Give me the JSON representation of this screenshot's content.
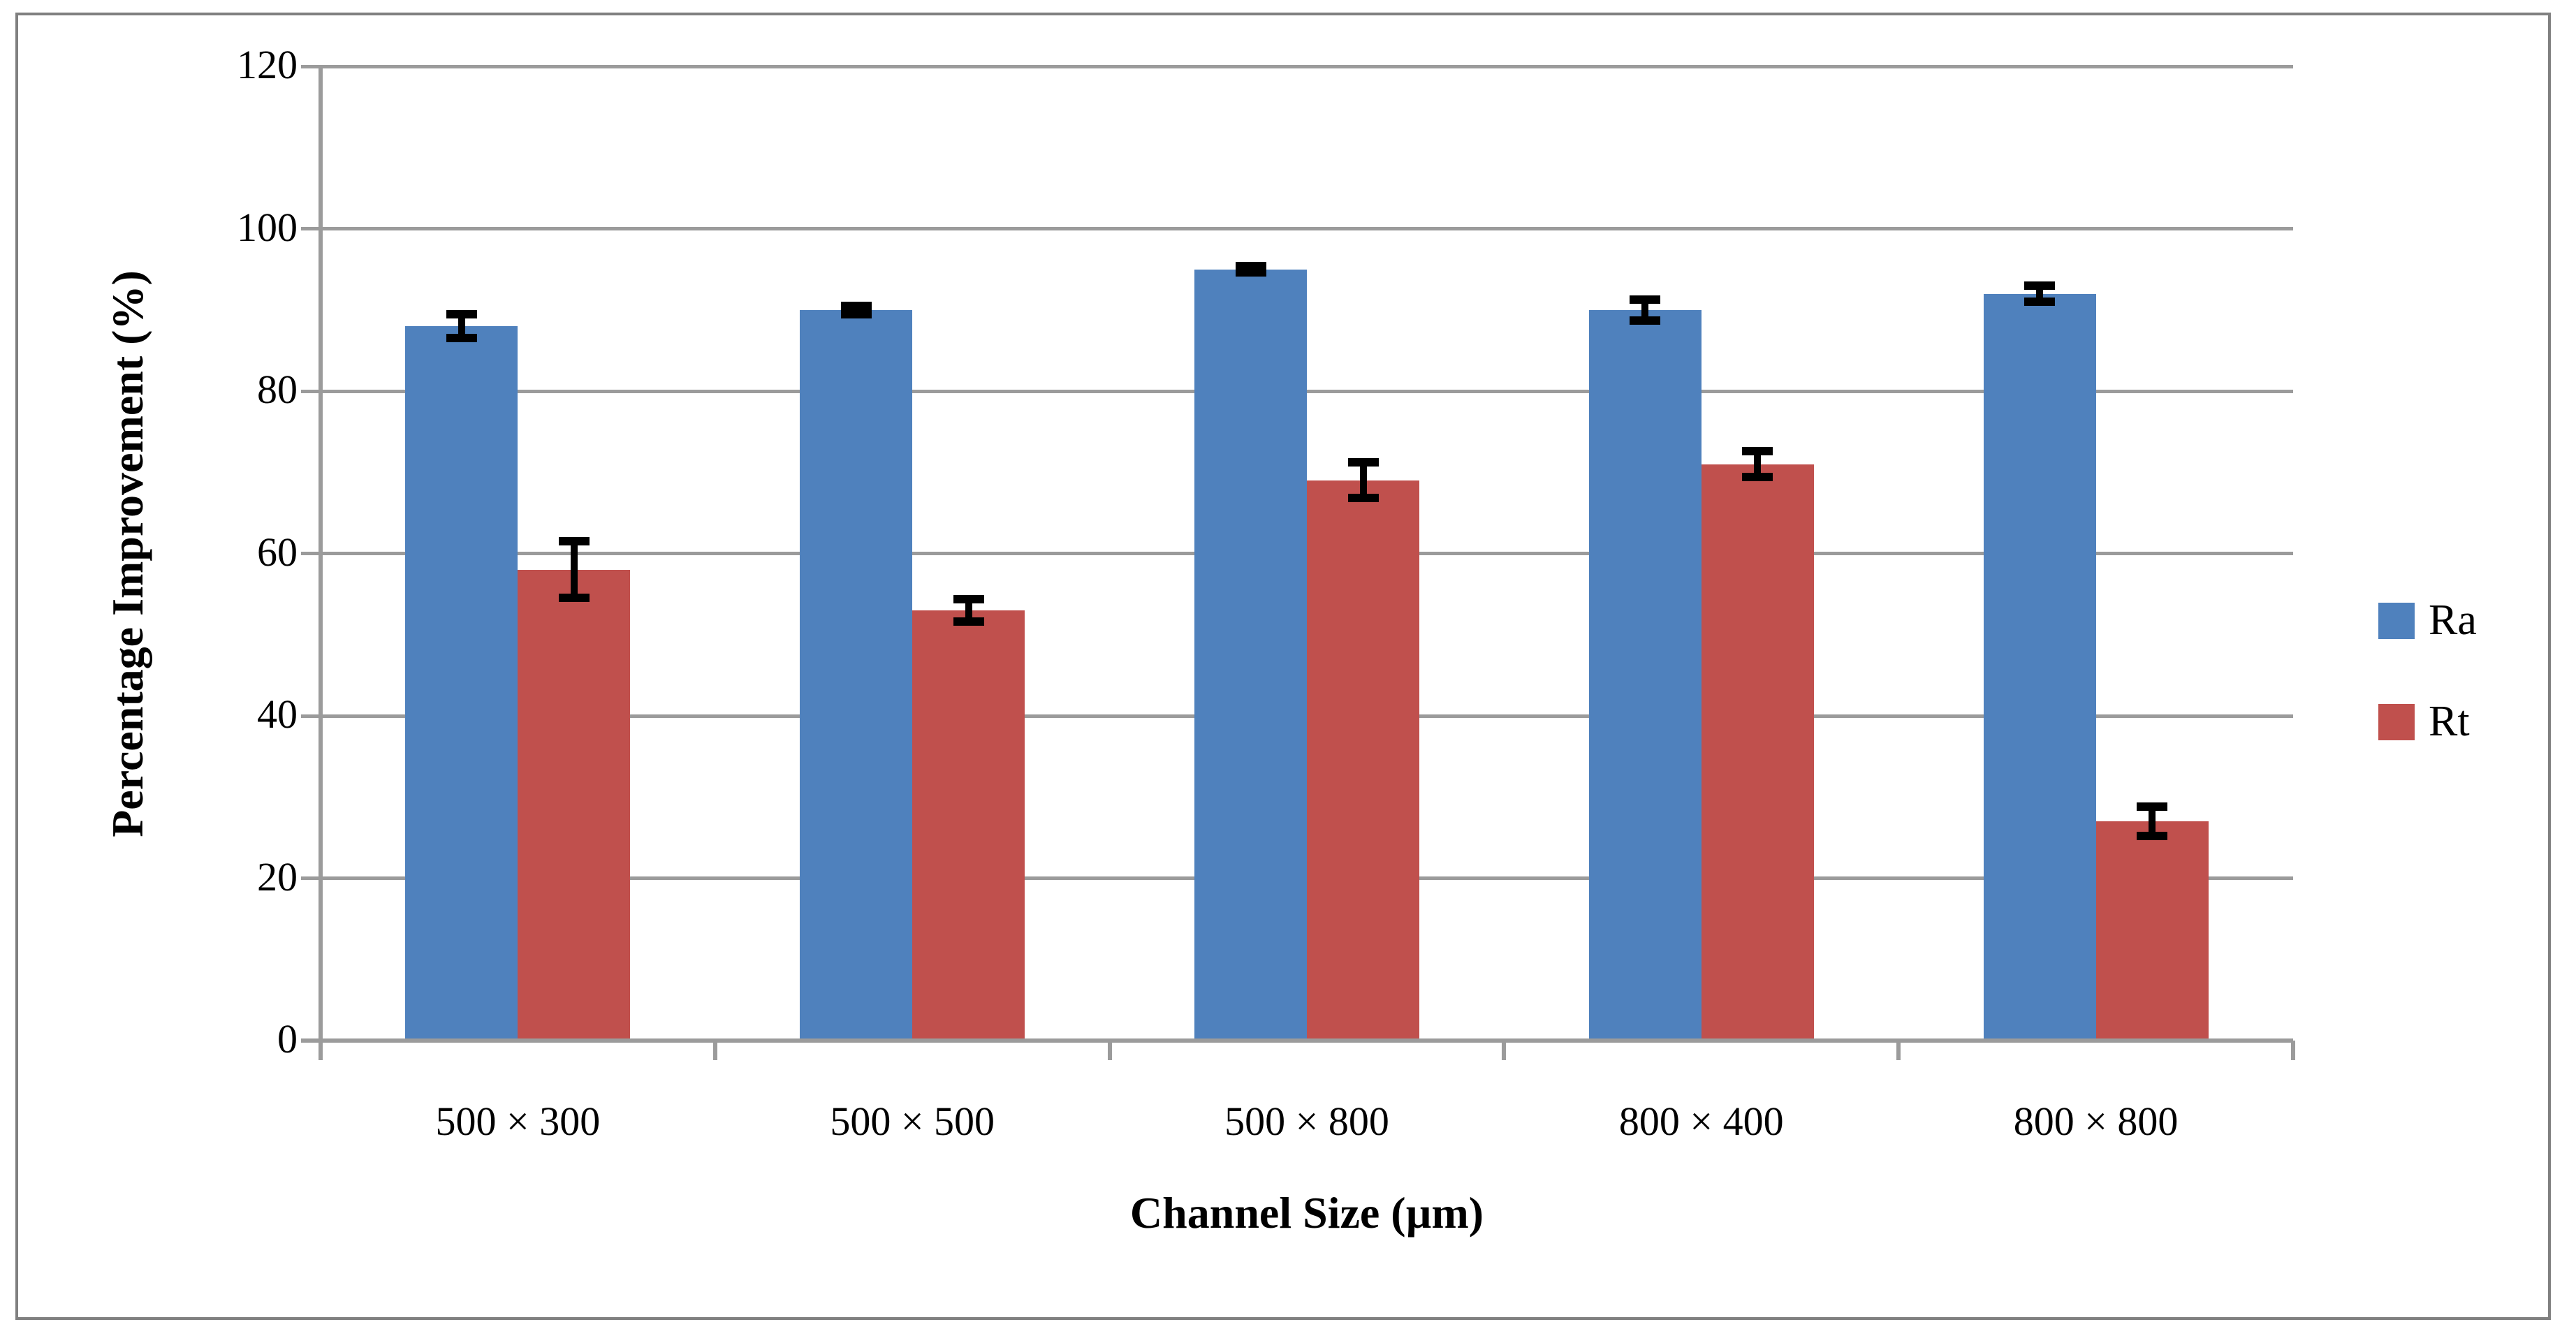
{
  "chart_data": {
    "type": "bar",
    "title": "",
    "xlabel": "Channel Size (µm)",
    "ylabel": "Percentage Improvement (%)",
    "categories": [
      "500 × 300",
      "500 × 500",
      "500 × 800",
      "800 × 400",
      "800 × 800"
    ],
    "series": [
      {
        "name": "Ra",
        "color": "#4F81BD",
        "values": [
          88,
          90,
          95,
          90,
          92
        ],
        "errors": [
          1.5,
          0.5,
          0.4,
          1.3,
          1.0
        ]
      },
      {
        "name": "Rt",
        "color": "#C0504D",
        "values": [
          58,
          53,
          69,
          71,
          27
        ],
        "errors": [
          3.5,
          1.4,
          2.2,
          1.6,
          1.8
        ]
      }
    ],
    "ylim": [
      0,
      120
    ],
    "ytick_step": 20,
    "grid": true,
    "legend_position": "right",
    "error_bars": true
  },
  "colors": {
    "gridline": "#9b9b9b",
    "axis": "#9b9b9b",
    "outer_border": "#808080",
    "error_bar": "#000000",
    "background": "#ffffff",
    "text": "#000000"
  }
}
